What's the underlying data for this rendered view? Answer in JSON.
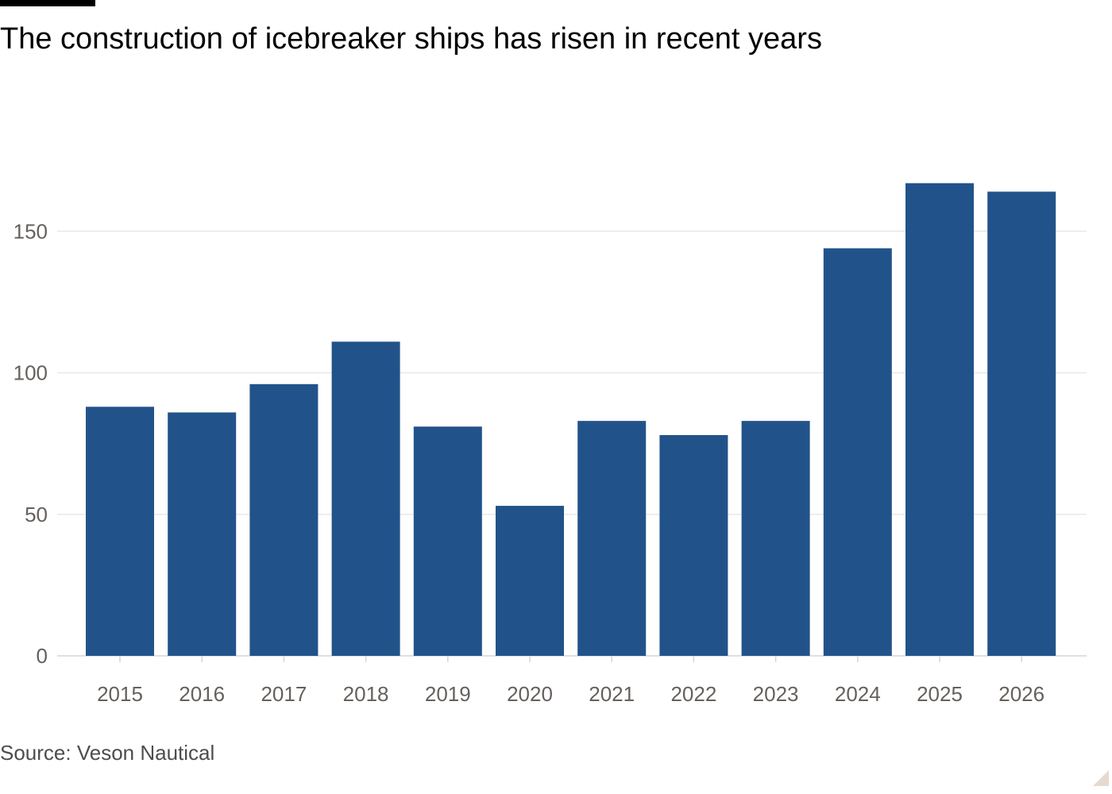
{
  "header": {
    "title": "The construction of icebreaker ships has risen in recent years"
  },
  "footer": {
    "source": "Source: Veson Nautical"
  },
  "colors": {
    "bar": "#21538a",
    "gridline": "#ebe7e4",
    "axis_text": "#66605c"
  },
  "chart_data": {
    "type": "bar",
    "title": "The construction of icebreaker ships has risen in recent years",
    "xlabel": "",
    "ylabel": "",
    "categories": [
      "2015",
      "2016",
      "2017",
      "2018",
      "2019",
      "2020",
      "2021",
      "2022",
      "2023",
      "2024",
      "2025",
      "2026"
    ],
    "values": [
      88,
      86,
      96,
      111,
      81,
      53,
      83,
      78,
      83,
      144,
      167,
      164
    ],
    "ylim": [
      0,
      170
    ],
    "yticks": [
      0,
      50,
      100,
      150
    ],
    "grid": true,
    "legend": "none"
  }
}
